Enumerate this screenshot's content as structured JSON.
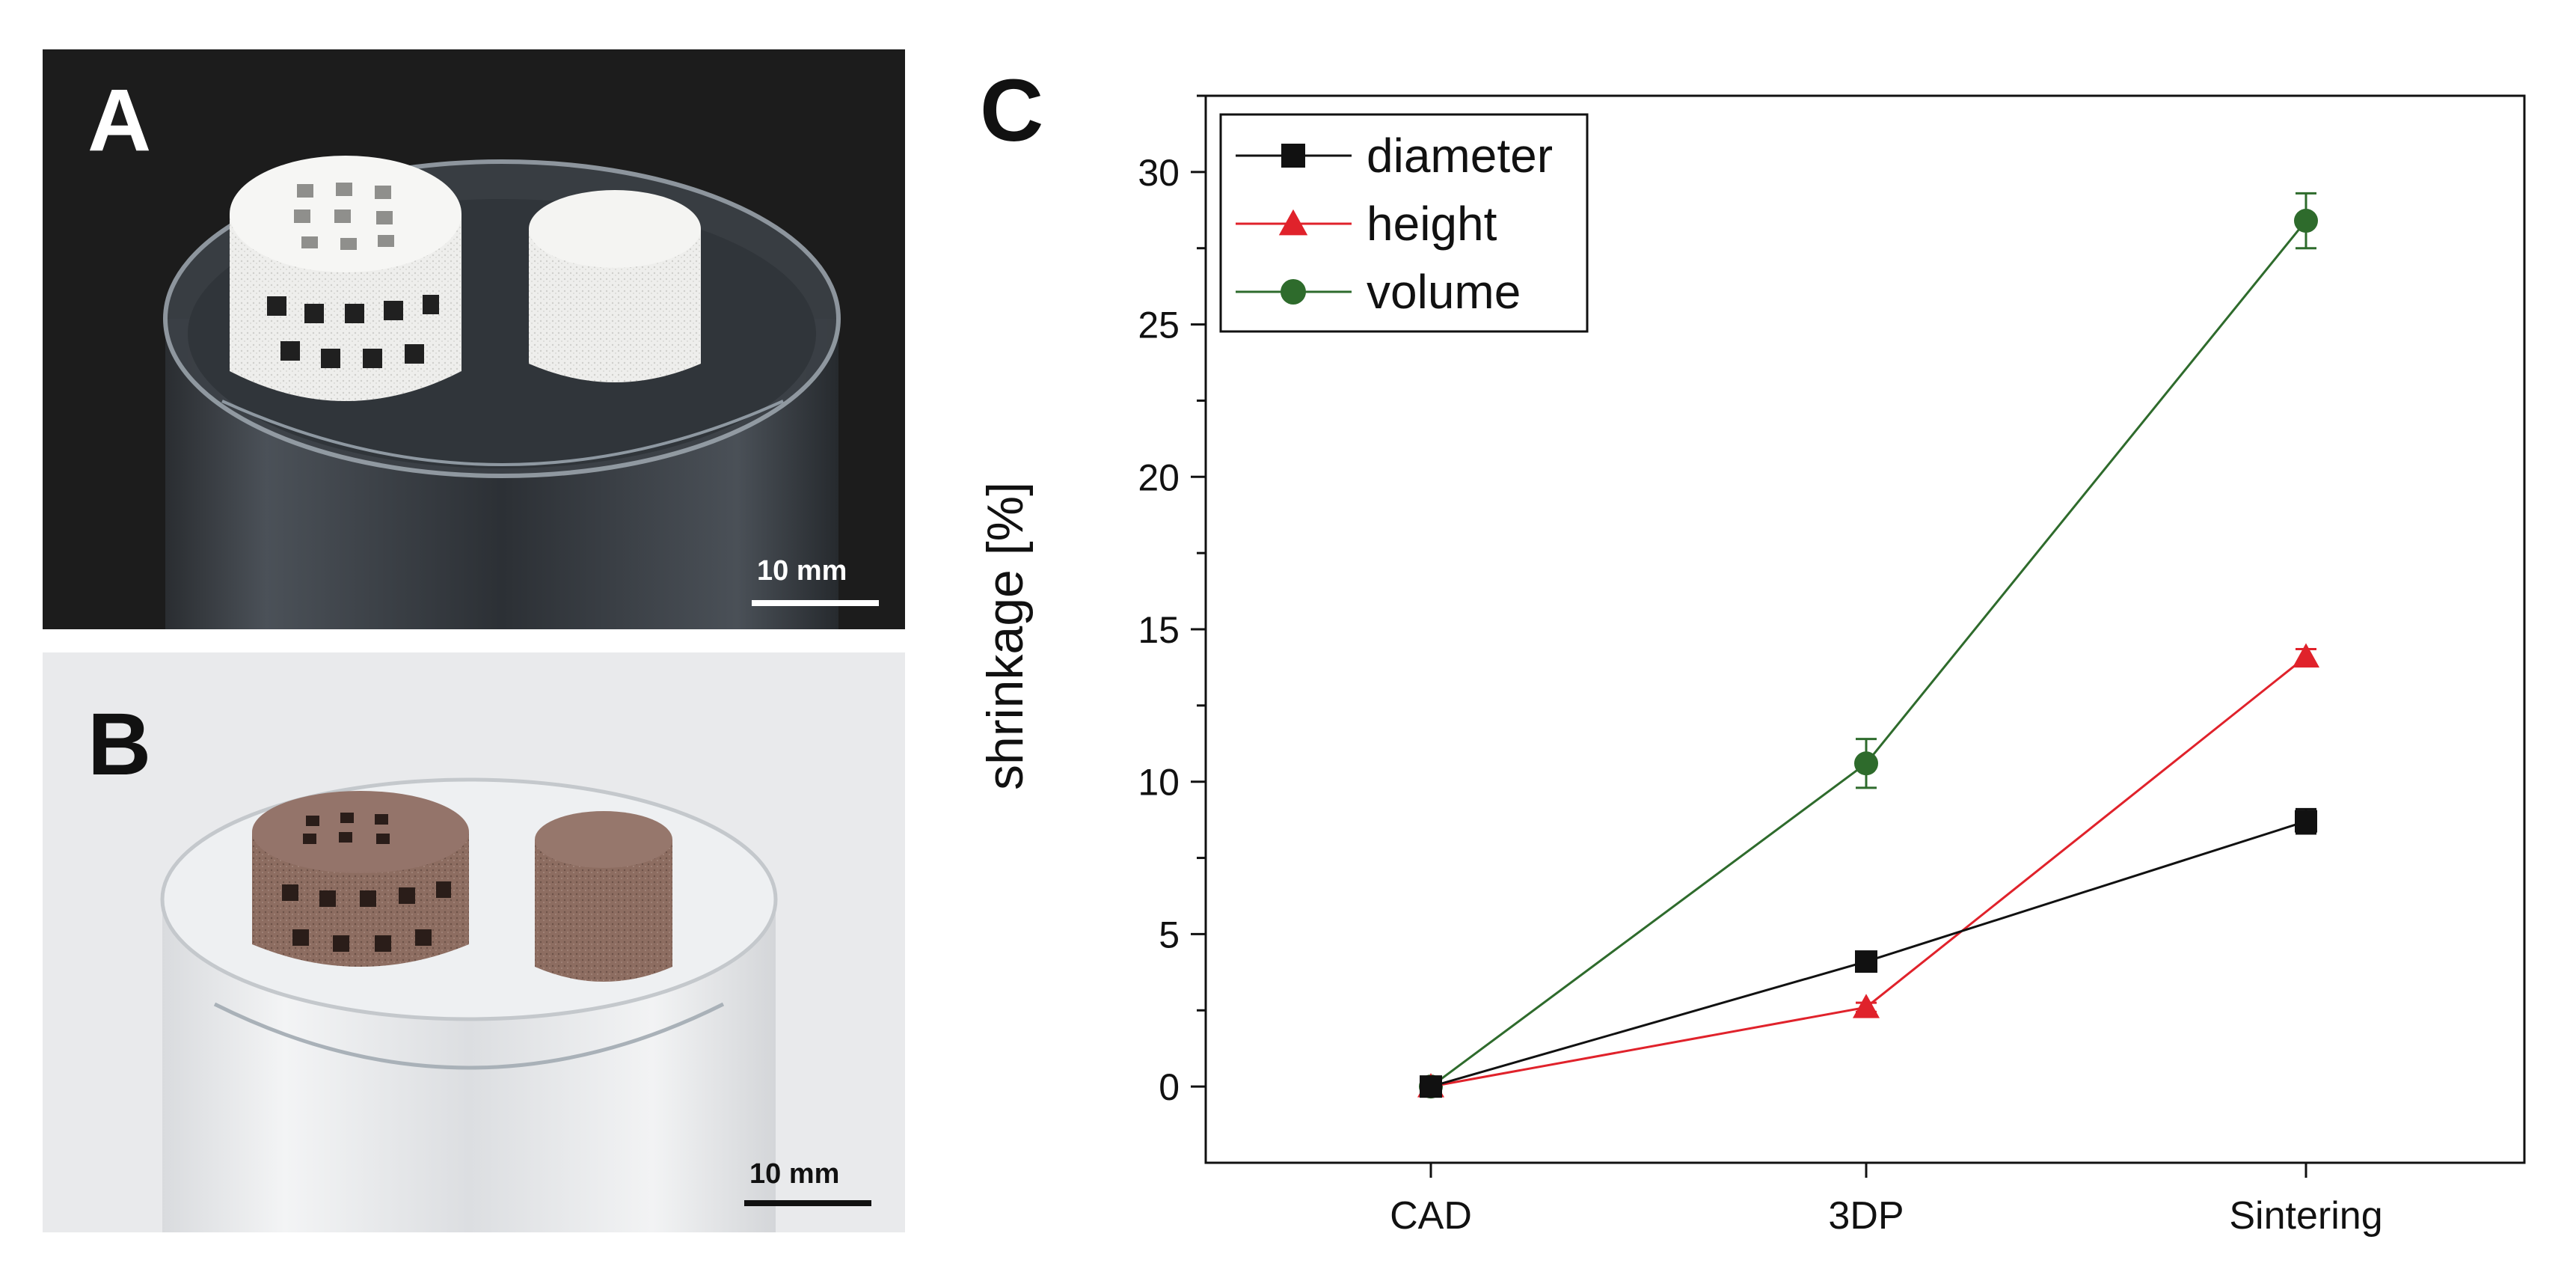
{
  "panels": {
    "a": {
      "letter": "A",
      "scale_label": "10 mm"
    },
    "b": {
      "letter": "B",
      "scale_label": "10 mm"
    },
    "c": {
      "letter": "C"
    }
  },
  "colors": {
    "diameter": "#111111",
    "height": "#e0222b",
    "volume": "#2e6b2c",
    "panel_a_bg": "#1c1c1c",
    "panel_b_bg": "#e9eaec",
    "scaffold_white": "#f1f1ef",
    "scaffold_brown": "#8a6a5e"
  },
  "chart_data": {
    "type": "line",
    "title": "",
    "xlabel": "",
    "ylabel": "shrinkage [%]",
    "categories": [
      "CAD",
      "3DP",
      "Sintering"
    ],
    "ylim": [
      -2.5,
      32.5
    ],
    "yticks": [
      0,
      5,
      10,
      15,
      20,
      25,
      30
    ],
    "grid": false,
    "legend_position": "top-left",
    "series": [
      {
        "name": "diameter",
        "marker": "square",
        "values": [
          0,
          4.1,
          8.7
        ],
        "errors": [
          0,
          0.2,
          0.4
        ]
      },
      {
        "name": "height",
        "marker": "triangle",
        "values": [
          0,
          2.6,
          14.1
        ],
        "errors": [
          0,
          0.15,
          0.25
        ]
      },
      {
        "name": "volume",
        "marker": "circle",
        "values": [
          0,
          10.6,
          28.4
        ],
        "errors": [
          0,
          0.8,
          0.9
        ]
      }
    ]
  }
}
